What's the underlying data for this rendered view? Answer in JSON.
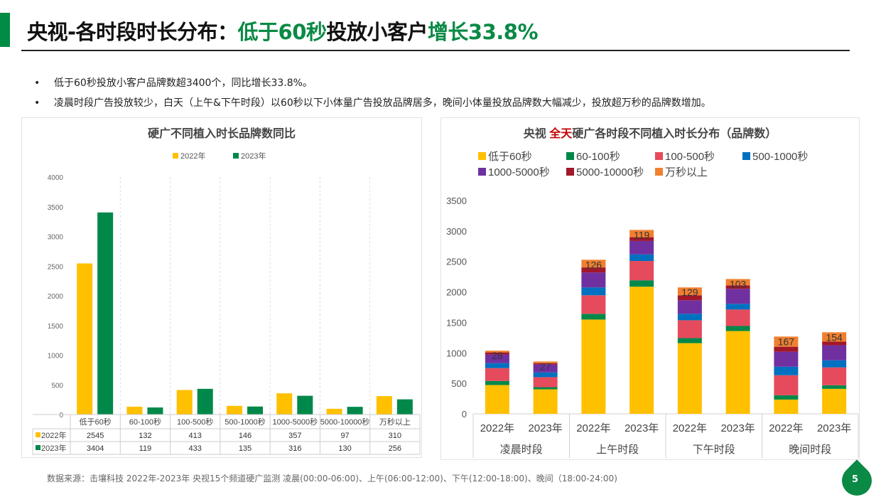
{
  "header": {
    "title_part1": "央视-各时段时长分布：",
    "title_part2": "低于60秒",
    "title_part3": "投放小客户",
    "title_part4": "增长33.8%"
  },
  "bullets": [
    "低于60秒投放小客户品牌数超3400个，同比增长33.8%。",
    "凌晨时段广告投放较少，白天（上午&下午时段）以60秒以下小体量广告投放品牌居多，晚间小体量投放品牌数大幅减少，投放超万秒的品牌数增加。"
  ],
  "colors": {
    "accent": "#008c44",
    "y2022": "#ffc000",
    "y2023": "#00884a"
  },
  "chart_data": [
    {
      "type": "bar",
      "title": "硬广不同植入时长品牌数同比",
      "categories": [
        "低于60秒",
        "60-100秒",
        "100-500秒",
        "500-1000秒",
        "1000-5000秒",
        "5000-10000秒",
        "万秒以上"
      ],
      "series": [
        {
          "name": "2022年",
          "color": "#ffc000",
          "values": [
            2545,
            132,
            413,
            146,
            357,
            97,
            310
          ]
        },
        {
          "name": "2023年",
          "color": "#00884a",
          "values": [
            3404,
            119,
            433,
            135,
            316,
            130,
            256
          ]
        }
      ],
      "ylim": [
        0,
        4000
      ],
      "yticks": [
        0,
        500,
        1000,
        1500,
        2000,
        2500,
        3000,
        3500,
        4000
      ],
      "legend": "top",
      "data_table": true,
      "grid": "vertical-dashed"
    },
    {
      "type": "stacked-bar",
      "title_prefix": "央视",
      "title_highlight": "全天",
      "title_rest": "硬广各时段不同植入时长分布（品牌数）",
      "groups": [
        "凌晨时段",
        "上午时段",
        "下午时段",
        "晚间时段"
      ],
      "categories": [
        "2022年",
        "2023年",
        "2022年",
        "2023年",
        "2022年",
        "2023年",
        "2022年",
        "2023年"
      ],
      "series": [
        {
          "name": "低于60秒",
          "color": "#ffc000",
          "values": [
            473,
            402,
            1547,
            2086,
            1160,
            1359,
            234,
            410
          ]
        },
        {
          "name": "60-100秒",
          "color": "#00884a",
          "values": [
            66,
            35,
            94,
            105,
            82,
            82,
            71,
            59
          ]
        },
        {
          "name": "100-500秒",
          "color": "#e54b5c",
          "values": [
            211,
            165,
            304,
            317,
            293,
            270,
            328,
            293
          ]
        },
        {
          "name": "500-1000秒",
          "color": "#0070c0",
          "values": [
            82,
            78,
            129,
            109,
            106,
            94,
            140,
            117
          ]
        },
        {
          "name": "1000-5000秒",
          "color": "#7030a0",
          "values": [
            141,
            129,
            246,
            219,
            222,
            246,
            246,
            246
          ]
        },
        {
          "name": "5000-10000秒",
          "color": "#a0182a",
          "values": [
            35,
            23,
            82,
            62,
            82,
            58,
            82,
            59
          ]
        },
        {
          "name": "万秒以上",
          "color": "#f08030",
          "values": [
            28,
            27,
            126,
            119,
            129,
            103,
            167,
            154
          ]
        }
      ],
      "labeled_series": "万秒以上",
      "ylim": [
        0,
        3500
      ],
      "yticks": [
        0,
        500,
        1000,
        1500,
        2000,
        2500,
        3000,
        3500
      ],
      "legend": "top"
    }
  ],
  "footer": "数据来源：击壤科技  2022年-2023年 央视15个频道硬广监测   凌晨(00:00-06:00)、上午(06:00-12:00)、下午(12:00-18:00)、晚间（18:00-24:00)",
  "page_number": "5"
}
